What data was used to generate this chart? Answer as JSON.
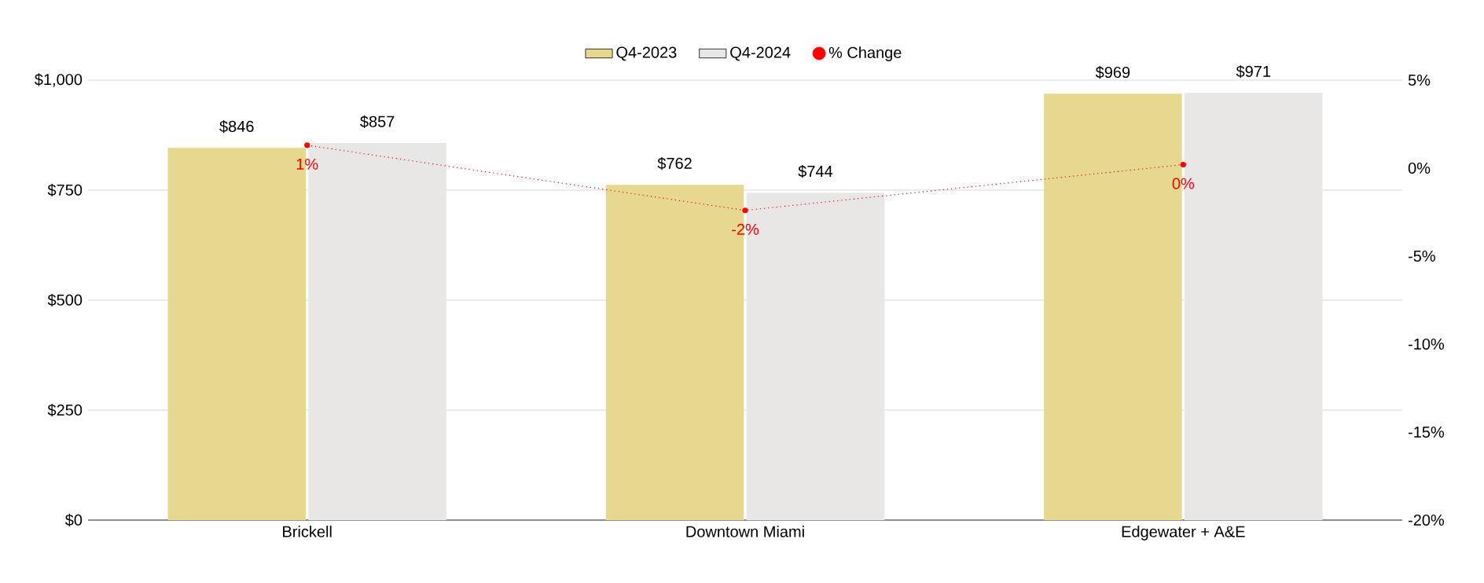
{
  "chart_data": {
    "type": "bar",
    "categories": [
      "Brickell",
      "Downtown Miami",
      "Edgewater + A&E"
    ],
    "series": [
      {
        "name": "Q4-2023",
        "color": "#e6d88e",
        "values": [
          846,
          762,
          969
        ],
        "value_labels": [
          "$846",
          "$762",
          "$969"
        ]
      },
      {
        "name": "Q4-2024",
        "color": "#e8e7e5",
        "values": [
          857,
          744,
          971
        ],
        "value_labels": [
          "$857",
          "$744",
          "$971"
        ]
      },
      {
        "name": "% Change",
        "type": "line",
        "axis": "y2",
        "color": "#ff0000",
        "values": [
          1.3,
          -2.4,
          0.2
        ],
        "value_labels": [
          "1%",
          "-2%",
          "0%"
        ],
        "marker": "circle",
        "line_style": "dotted"
      }
    ],
    "ylim": [
      0,
      1000
    ],
    "yticks": [
      {
        "value": 0,
        "label": "$0"
      },
      {
        "value": 250,
        "label": "$250"
      },
      {
        "value": 500,
        "label": "$500"
      },
      {
        "value": 750,
        "label": "$750"
      },
      {
        "value": 1000,
        "label": "$1,000"
      }
    ],
    "y2lim": [
      -20,
      5
    ],
    "y2ticks": [
      {
        "value": -20,
        "label": "-20%"
      },
      {
        "value": -15,
        "label": "-15%"
      },
      {
        "value": -10,
        "label": "-10%"
      },
      {
        "value": -5,
        "label": "-5%"
      },
      {
        "value": 0,
        "label": "0%"
      },
      {
        "value": 5,
        "label": "5%"
      }
    ],
    "grid": "y",
    "legend": "top"
  }
}
